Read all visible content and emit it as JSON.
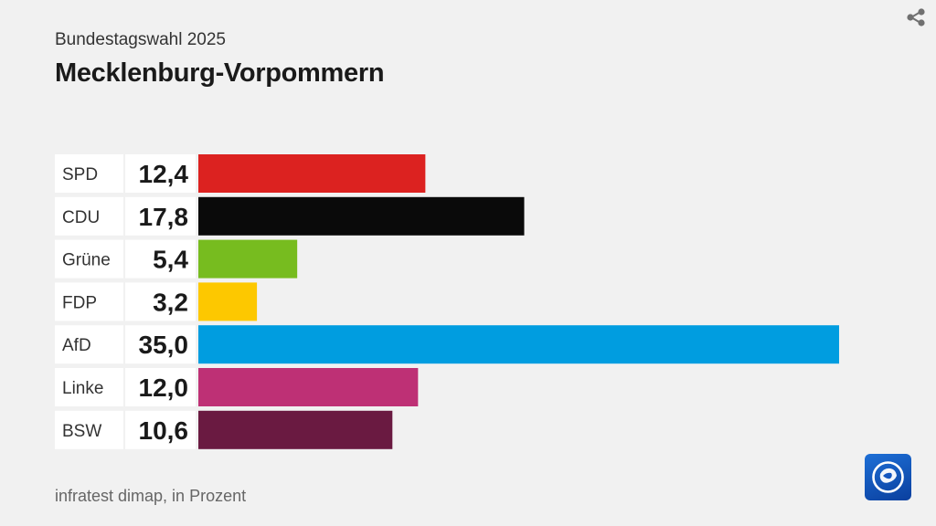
{
  "header": {
    "subtitle": "Bundestagswahl 2025",
    "title": "Mecklenburg-Vorpommern"
  },
  "chart_data": {
    "type": "bar",
    "orientation": "horizontal",
    "title": "Mecklenburg-Vorpommern",
    "subtitle": "Bundestagswahl 2025",
    "xlabel": "",
    "ylabel": "",
    "xlim": [
      0,
      35
    ],
    "categories": [
      "SPD",
      "CDU",
      "Grüne",
      "FDP",
      "AfD",
      "Linke",
      "BSW"
    ],
    "values": [
      12.4,
      17.8,
      5.4,
      3.2,
      35.0,
      12.0,
      10.6
    ],
    "value_labels": [
      "12,4",
      "17,8",
      "5,4",
      "3,2",
      "35,0",
      "12,0",
      "10,6"
    ],
    "colors": [
      "#dc2220",
      "#0a0a0a",
      "#77bc1f",
      "#fdc800",
      "#009de0",
      "#be3075",
      "#6a1a41"
    ],
    "unit": "Prozent"
  },
  "footer": {
    "source": "infratest dimap, in Prozent"
  },
  "icons": {
    "share": "share-icon",
    "logo": "tagesschau-logo-icon"
  }
}
